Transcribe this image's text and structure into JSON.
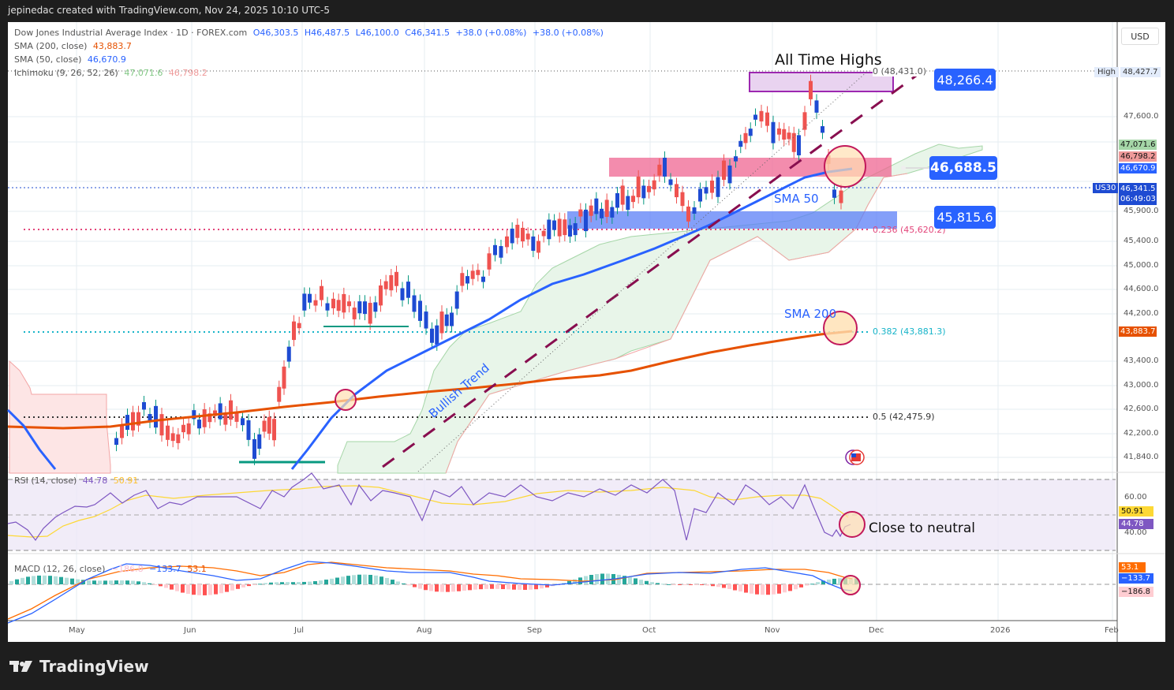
{
  "header": {
    "created_by": "jepinedac created with TradingView.com, Nov 24, 2025 10:10 UTC-5"
  },
  "legend": {
    "symbol": "Dow Jones Industrial Average Index · 1D · FOREX.com",
    "open": "O46,303.5",
    "high": "H46,487.5",
    "low": "L46,100.0",
    "close": "C46,341.5",
    "change1": "+38.0 (+0.08%)",
    "change2": "+38.0 (+0.08%)",
    "sma200_label": "SMA (200, close)",
    "sma200_value": "43,883.7",
    "sma50_label": "SMA (50, close)",
    "sma50_value": "46,670.9",
    "ichimoku_label": "Ichimoku (9, 26, 52, 26)",
    "ichimoku_v1": "47,071.6",
    "ichimoku_v2": "46,798.2",
    "rsi_label": "RSI (14, close)",
    "rsi_value": "44.78",
    "rsi_ma": "50.91",
    "macd_label": "MACD (12, 26, close)",
    "macd_hist": "−186.8",
    "macd_line": "−133.7",
    "macd_signal": "53.1"
  },
  "price_axis": {
    "currency": "USD",
    "ticks": [
      "47,600.0",
      "47,200.0",
      "46,400.0",
      "45,900.0",
      "45,400.0",
      "45,000.0",
      "44,600.0",
      "44,200.0",
      "43,400.0",
      "43,000.0",
      "42,600.0",
      "42,200.0",
      "41,840.0"
    ],
    "high_tag": "High",
    "high_value": "48,427.7",
    "ichi_green": "47,071.6",
    "ichi_red": "46,798.2",
    "sma50_tag": "46,670.9",
    "symbol_tag": "US30",
    "last_price": "46,341.5",
    "countdown": "06:49:03",
    "sma200_tag": "43,883.7"
  },
  "rsi_axis": {
    "ticks": [
      "60.00",
      "40.00"
    ],
    "ma_tag": "50.91",
    "rsi_tag": "44.78"
  },
  "macd_axis": {
    "signal_tag": "53.1",
    "line_tag": "−133.7",
    "hist_tag": "−186.8"
  },
  "time_axis": {
    "labels": [
      "May",
      "Jun",
      "Jul",
      "Aug",
      "Sep",
      "Oct",
      "Nov",
      "Dec",
      "2026",
      "Feb"
    ]
  },
  "annotations": {
    "ath": "All Time Highs",
    "sma50": "SMA 50",
    "sma200": "SMA 200",
    "trend": "Bullish Trend",
    "rsi_note": "Close to neutral",
    "level_high": "48,266.4",
    "level_mid": "46,688.5",
    "level_low": "45,815.6",
    "fib0": "0 (48,431.0)",
    "fib236": "0.236 (45,620.2)",
    "fib382": "0.382 (43,881.3)",
    "fib5": "0.5 (42,475.9)"
  },
  "brand": {
    "name": "TradingView"
  },
  "colors": {
    "up": "#1e4bd2",
    "down": "#ef5350",
    "sma50": "#2962ff",
    "sma200": "#e65100",
    "rsi": "#7e57c2",
    "rsi_ma": "#fdd835",
    "trend": "#880e4f"
  },
  "chart_data": {
    "type": "candlestick",
    "title": "Dow Jones Industrial Average Index · 1D · FOREX.com",
    "x_labels": [
      "May",
      "Jun",
      "Jul",
      "Aug",
      "Sep",
      "Oct",
      "Nov",
      "Dec",
      "2026",
      "Feb"
    ],
    "ylabel": "USD",
    "ylim": [
      41700,
      48600
    ],
    "last": {
      "open": 46303.5,
      "high": 46487.5,
      "low": 46100.0,
      "close": 46341.5
    },
    "indicators": {
      "sma200": 43883.7,
      "sma50": 46670.9,
      "ichimoku_lead_a": 47071.6,
      "ichimoku_lead_b": 46798.2,
      "rsi": 44.78,
      "rsi_ma": 50.91,
      "macd_hist": -186.8,
      "macd": -133.7,
      "macd_signal": 53.1
    },
    "fibonacci": [
      {
        "level": 0,
        "price": 48431.0
      },
      {
        "level": 0.236,
        "price": 45620.2
      },
      {
        "level": 0.382,
        "price": 43881.3
      },
      {
        "level": 0.5,
        "price": 42475.9
      }
    ],
    "key_levels": [
      48266.4,
      46688.5,
      45815.6
    ],
    "all_time_high": 48427.7,
    "approx_closes_monthly": [
      {
        "month": "May",
        "close": 42200
      },
      {
        "month": "Jun",
        "close": 42300
      },
      {
        "month": "Jul",
        "close": 44400
      },
      {
        "month": "Aug",
        "close": 45500
      },
      {
        "month": "Sep",
        "close": 46300
      },
      {
        "month": "Oct",
        "close": 47500
      },
      {
        "month": "Nov",
        "close": 46340
      }
    ]
  }
}
